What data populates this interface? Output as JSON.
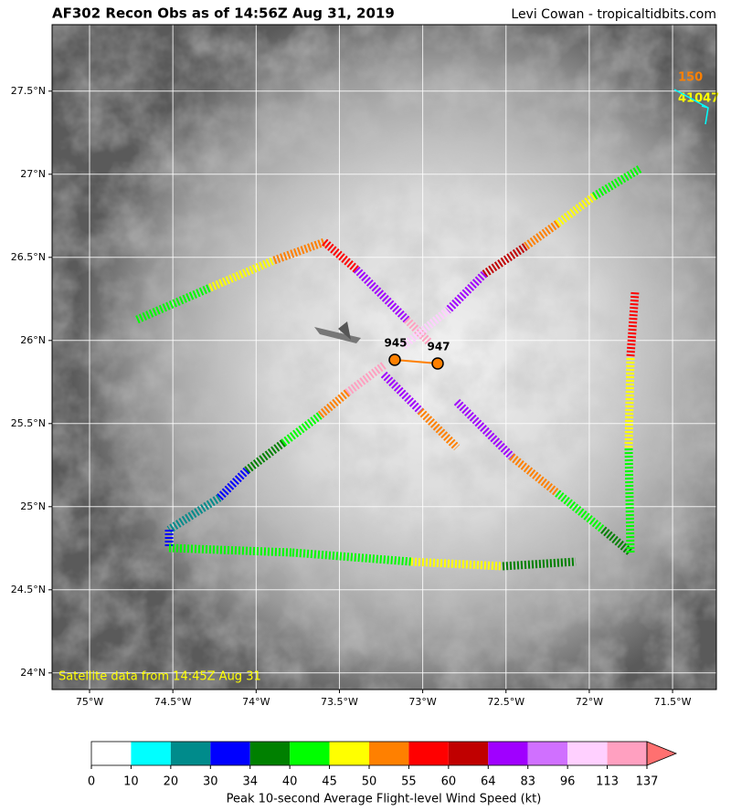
{
  "header": {
    "title": "AF302 Recon Obs as of 14:56Z Aug 31, 2019",
    "credit": "Levi Cowan - tropicaltidbits.com"
  },
  "map": {
    "lon_range": [
      -75.225,
      -71.237
    ],
    "lat_range": [
      23.9,
      27.9
    ],
    "lon_ticks": [
      {
        "value": -75,
        "label": "75°W"
      },
      {
        "value": -74.5,
        "label": "74.5°W"
      },
      {
        "value": -74,
        "label": "74°W"
      },
      {
        "value": -73.5,
        "label": "73.5°W"
      },
      {
        "value": -73,
        "label": "73°W"
      },
      {
        "value": -72.5,
        "label": "72.5°W"
      },
      {
        "value": -72,
        "label": "72°W"
      },
      {
        "value": -71.5,
        "label": "71.5°W"
      }
    ],
    "lat_ticks": [
      {
        "value": 24,
        "label": "24°N"
      },
      {
        "value": 24.5,
        "label": "24.5°N"
      },
      {
        "value": 25,
        "label": "25°N"
      },
      {
        "value": 25.5,
        "label": "25.5°N"
      },
      {
        "value": 26,
        "label": "26°N"
      },
      {
        "value": 26.5,
        "label": "26.5°N"
      },
      {
        "value": 27,
        "label": "27°N"
      },
      {
        "value": 27.5,
        "label": "27.5°N"
      }
    ],
    "center_pressures": [
      "945",
      "947"
    ],
    "buoy": {
      "wind": "150",
      "id": "41047"
    },
    "satellite_note": "Satellite data from 14:45Z Aug 31"
  },
  "colorbar": {
    "boundaries": [
      0,
      10,
      20,
      30,
      34,
      40,
      45,
      50,
      55,
      60,
      64,
      83,
      96,
      113,
      137
    ],
    "colors": [
      "#ffffff",
      "#00ffff",
      "#008b8b",
      "#0000ff",
      "#008000",
      "#00ff00",
      "#ffff00",
      "#ff8000",
      "#ff0000",
      "#c00000",
      "#a000ff",
      "#d070ff",
      "#ffd0ff",
      "#ffa0c0"
    ],
    "extend_color": "#ff7070",
    "label": "Peak 10-second Average Flight-level Wind Speed (kt)"
  }
}
